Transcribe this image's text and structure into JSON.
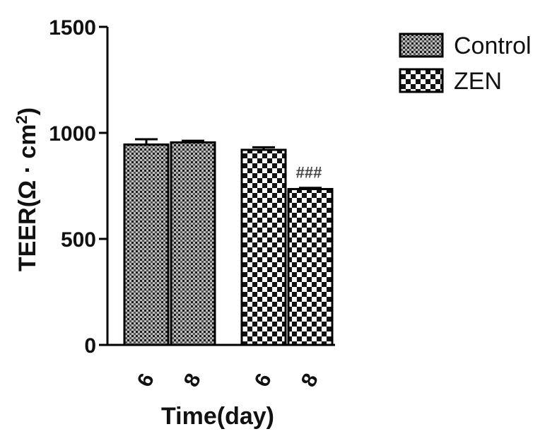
{
  "chart_data": {
    "type": "bar",
    "xlabel": "Time(day)",
    "ylabel_main": "TEER(Ω · cm",
    "ylabel_sup": "2",
    "ylabel_end": ")",
    "ylim": [
      0,
      1500
    ],
    "yticks": [
      0,
      500,
      1000,
      1500
    ],
    "legend_position": "top-right",
    "groups": [
      {
        "series": "Control",
        "bars": [
          {
            "x": "6",
            "value": 945,
            "error": 25
          },
          {
            "x": "8",
            "value": 955,
            "error": 8
          }
        ]
      },
      {
        "series": "ZEN",
        "bars": [
          {
            "x": "6",
            "value": 920,
            "error": 12
          },
          {
            "x": "8",
            "value": 735,
            "error": 6,
            "annotation": "###"
          }
        ]
      }
    ],
    "legend": [
      {
        "name": "Control",
        "pattern": "control"
      },
      {
        "name": "ZEN",
        "pattern": "zen"
      }
    ]
  }
}
